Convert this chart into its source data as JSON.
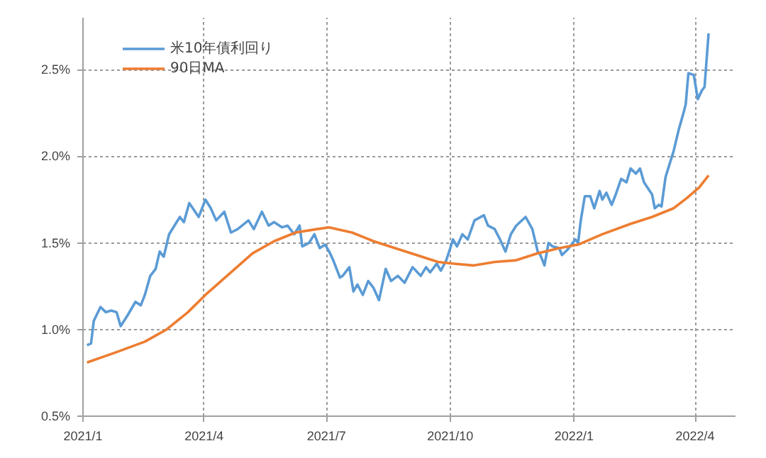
{
  "chart_data": {
    "type": "line",
    "xlim": [
      "2021-01-01",
      "2022-05-01"
    ],
    "xticks": [
      {
        "value": "2021-01-01",
        "label": "2021/1"
      },
      {
        "value": "2021-04-01",
        "label": "2021/4"
      },
      {
        "value": "2021-07-01",
        "label": "2021/7"
      },
      {
        "value": "2021-10-01",
        "label": "2021/10"
      },
      {
        "value": "2022-01-01",
        "label": "2022/1"
      },
      {
        "value": "2022-04-01",
        "label": "2022/4"
      }
    ],
    "ylim": [
      0.5,
      2.8
    ],
    "yticks": [
      {
        "value": 0.5,
        "label": "0.5%"
      },
      {
        "value": 1.0,
        "label": "1.0%"
      },
      {
        "value": 1.5,
        "label": "1.5%"
      },
      {
        "value": 2.0,
        "label": "2.0%"
      },
      {
        "value": 2.5,
        "label": "2.5%"
      }
    ],
    "grid": true,
    "legend": "top left",
    "marker": "none",
    "line_style": "solid",
    "series": [
      {
        "name": "米10年債利回り",
        "color": "#5b9bd5",
        "x": [
          "2021-01-04",
          "2021-01-07",
          "2021-01-09",
          "2021-01-14",
          "2021-01-18",
          "2021-01-22",
          "2021-01-26",
          "2021-01-29",
          "2021-02-03",
          "2021-02-09",
          "2021-02-13",
          "2021-02-16",
          "2021-02-20",
          "2021-02-24",
          "2021-02-27",
          "2021-03-02",
          "2021-03-06",
          "2021-03-10",
          "2021-03-14",
          "2021-03-17",
          "2021-03-21",
          "2021-03-28",
          "2021-04-02",
          "2021-04-06",
          "2021-04-10",
          "2021-04-16",
          "2021-04-21",
          "2021-04-26",
          "2021-05-04",
          "2021-05-08",
          "2021-05-14",
          "2021-05-19",
          "2021-05-23",
          "2021-05-29",
          "2021-06-02",
          "2021-06-07",
          "2021-06-11",
          "2021-06-13",
          "2021-06-18",
          "2021-06-22",
          "2021-06-26",
          "2021-06-30",
          "2021-07-03",
          "2021-07-06",
          "2021-07-11",
          "2021-07-13",
          "2021-07-18",
          "2021-07-21",
          "2021-07-24",
          "2021-07-28",
          "2021-08-01",
          "2021-08-05",
          "2021-08-09",
          "2021-08-14",
          "2021-08-18",
          "2021-08-23",
          "2021-08-28",
          "2021-09-03",
          "2021-09-09",
          "2021-09-13",
          "2021-09-16",
          "2021-09-21",
          "2021-09-24",
          "2021-09-28",
          "2021-10-01",
          "2021-10-03",
          "2021-10-06",
          "2021-10-10",
          "2021-10-14",
          "2021-10-19",
          "2021-10-26",
          "2021-10-29",
          "2021-11-03",
          "2021-11-07",
          "2021-11-11",
          "2021-11-15",
          "2021-11-19",
          "2021-11-26",
          "2021-12-01",
          "2021-12-05",
          "2021-12-07",
          "2021-12-10",
          "2021-12-13",
          "2021-12-16",
          "2021-12-21",
          "2021-12-23",
          "2021-12-27",
          "2021-12-29",
          "2022-01-02",
          "2022-01-04",
          "2022-01-06",
          "2022-01-09",
          "2022-01-13",
          "2022-01-16",
          "2022-01-20",
          "2022-01-22",
          "2022-01-25",
          "2022-01-29",
          "2022-02-01",
          "2022-02-05",
          "2022-02-09",
          "2022-02-12",
          "2022-02-16",
          "2022-02-19",
          "2022-02-22",
          "2022-02-28",
          "2022-03-02",
          "2022-03-05",
          "2022-03-07",
          "2022-03-10",
          "2022-03-16",
          "2022-03-20",
          "2022-03-23",
          "2022-03-25",
          "2022-03-27",
          "2022-03-31",
          "2022-04-03",
          "2022-04-06",
          "2022-04-08",
          "2022-04-11"
        ],
        "values": [
          0.91,
          0.92,
          1.05,
          1.13,
          1.1,
          1.11,
          1.1,
          1.02,
          1.08,
          1.16,
          1.14,
          1.2,
          1.31,
          1.35,
          1.45,
          1.42,
          1.55,
          1.6,
          1.65,
          1.62,
          1.73,
          1.65,
          1.75,
          1.7,
          1.63,
          1.68,
          1.56,
          1.58,
          1.63,
          1.58,
          1.68,
          1.6,
          1.62,
          1.59,
          1.6,
          1.55,
          1.6,
          1.48,
          1.5,
          1.55,
          1.47,
          1.49,
          1.45,
          1.4,
          1.3,
          1.31,
          1.36,
          1.22,
          1.26,
          1.2,
          1.28,
          1.24,
          1.17,
          1.35,
          1.28,
          1.31,
          1.27,
          1.36,
          1.31,
          1.36,
          1.33,
          1.38,
          1.34,
          1.4,
          1.47,
          1.52,
          1.48,
          1.55,
          1.52,
          1.63,
          1.66,
          1.6,
          1.58,
          1.52,
          1.45,
          1.55,
          1.6,
          1.65,
          1.58,
          1.45,
          1.43,
          1.37,
          1.5,
          1.48,
          1.47,
          1.43,
          1.46,
          1.48,
          1.52,
          1.5,
          1.63,
          1.77,
          1.77,
          1.7,
          1.8,
          1.75,
          1.79,
          1.72,
          1.78,
          1.87,
          1.85,
          1.93,
          1.9,
          1.93,
          1.85,
          1.78,
          1.7,
          1.72,
          1.71,
          1.88,
          2.03,
          2.16,
          2.24,
          2.3,
          2.48,
          2.47,
          2.33,
          2.38,
          2.4,
          2.71
        ]
      },
      {
        "name": "90日MA",
        "color": "#ed7d31",
        "x": [
          "2021-01-04",
          "2021-01-26",
          "2021-02-16",
          "2021-03-04",
          "2021-03-20",
          "2021-04-02",
          "2021-04-21",
          "2021-05-07",
          "2021-05-23",
          "2021-06-08",
          "2021-06-24",
          "2021-07-03",
          "2021-07-20",
          "2021-08-05",
          "2021-08-21",
          "2021-09-06",
          "2021-09-22",
          "2021-10-04",
          "2021-10-18",
          "2021-11-03",
          "2021-11-19",
          "2021-12-05",
          "2021-12-21",
          "2022-01-04",
          "2022-01-22",
          "2022-02-12",
          "2022-02-28",
          "2022-03-16",
          "2022-03-26",
          "2022-04-04",
          "2022-04-11"
        ],
        "values": [
          0.81,
          0.87,
          0.93,
          1.0,
          1.1,
          1.2,
          1.33,
          1.44,
          1.51,
          1.56,
          1.58,
          1.59,
          1.56,
          1.51,
          1.47,
          1.43,
          1.39,
          1.38,
          1.37,
          1.39,
          1.4,
          1.44,
          1.47,
          1.49,
          1.55,
          1.61,
          1.65,
          1.7,
          1.76,
          1.82,
          1.89
        ]
      }
    ]
  }
}
